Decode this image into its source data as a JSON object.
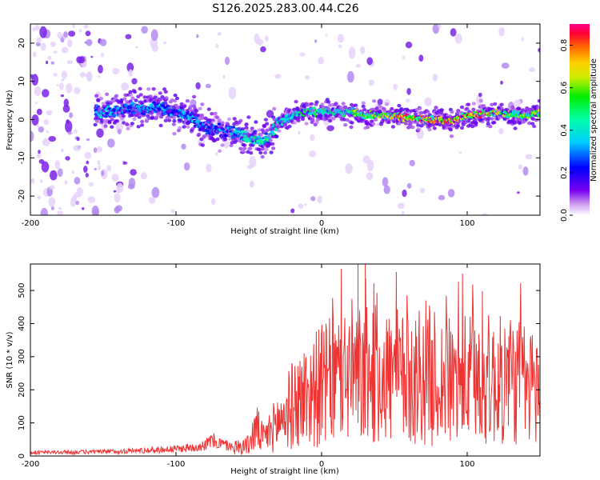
{
  "title": "S126.2025.283.00.44.C26",
  "chart_data": [
    {
      "type": "heatmap",
      "xlabel": "Height of straight line (km)",
      "ylabel": "Frequency (Hz)",
      "xlim": [
        -200,
        150
      ],
      "ylim": [
        -25,
        25
      ],
      "x_ticks": [
        -200,
        -100,
        0,
        100
      ],
      "y_ticks": [
        -20,
        -10,
        0,
        10,
        20
      ],
      "ridge": {
        "x": [
          -150,
          -130,
          -110,
          -100,
          -90,
          -80,
          -70,
          -60,
          -50,
          -40,
          -35,
          -30,
          -20,
          -10,
          0,
          10,
          20,
          30,
          40,
          50,
          60,
          70,
          80,
          90,
          100,
          110,
          120,
          130,
          140,
          150
        ],
        "y": [
          2,
          3,
          3,
          2,
          1,
          -2,
          -3,
          -3,
          -5,
          -6,
          -4,
          -1,
          1,
          2,
          2,
          2,
          2,
          1,
          1,
          1,
          0.5,
          0,
          0,
          -0.5,
          1,
          1.5,
          2,
          1,
          1,
          2
        ],
        "amplitude": [
          0.35,
          0.3,
          0.35,
          0.3,
          0.35,
          0.3,
          0.3,
          0.35,
          0.45,
          0.45,
          0.45,
          0.45,
          0.5,
          0.5,
          0.5,
          0.5,
          0.55,
          0.6,
          0.6,
          0.7,
          0.85,
          0.7,
          0.8,
          0.9,
          0.75,
          0.8,
          0.7,
          0.6,
          0.6,
          0.6
        ]
      },
      "colorbar": {
        "label": "Normalized spectral amplitude",
        "range": [
          0,
          0.9
        ],
        "ticks": [
          "0.0",
          "0.2",
          "0.4",
          "0.6",
          "0.8"
        ]
      }
    },
    {
      "type": "line",
      "xlabel": "Height of straight line (km)",
      "ylabel": "SNR (10 * v/v)",
      "xlim": [
        -200,
        150
      ],
      "ylim": [
        0,
        580
      ],
      "x_ticks": [
        -200,
        -100,
        0,
        100
      ],
      "y_ticks": [
        0,
        100,
        200,
        300,
        400,
        500
      ],
      "color": "#ee3333",
      "envelope": {
        "x": [
          -200,
          -150,
          -120,
          -100,
          -90,
          -80,
          -75,
          -70,
          -60,
          -50,
          -45,
          -40,
          -30,
          -20,
          -10,
          0,
          10,
          20,
          30,
          40,
          50,
          60,
          70,
          80,
          90,
          100,
          110,
          120,
          130,
          140,
          150
        ],
        "y": [
          12,
          15,
          20,
          25,
          30,
          40,
          55,
          45,
          30,
          40,
          100,
          60,
          120,
          180,
          220,
          250,
          270,
          300,
          280,
          290,
          280,
          270,
          300,
          270,
          260,
          270,
          280,
          260,
          280,
          250,
          250
        ]
      },
      "max_points": [
        {
          "x": 25,
          "y": 580
        },
        {
          "x": 30,
          "y": 580
        }
      ]
    }
  ],
  "colors": {
    "sparse_scatter": "#7733ee",
    "line": "#ee3333"
  }
}
